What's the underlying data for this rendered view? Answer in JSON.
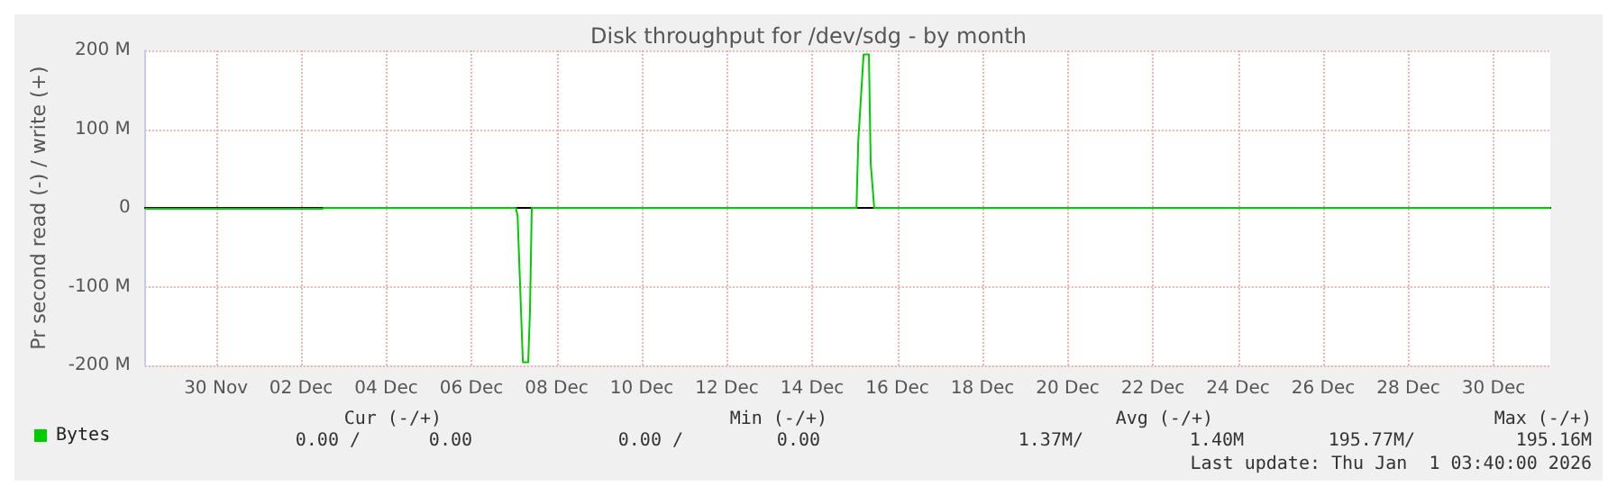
{
  "chart_data": {
    "type": "line",
    "title": "Disk throughput for /dev/sdg - by month",
    "ylabel": "Pr second read (-) / write (+)",
    "xlim": [
      "--11-28T08:00",
      "--12-31T08:00"
    ],
    "xticks": [
      {
        "value": "--11-30",
        "label": "30 Nov"
      },
      {
        "value": "--12-02",
        "label": "02 Dec"
      },
      {
        "value": "--12-04",
        "label": "04 Dec"
      },
      {
        "value": "--12-06",
        "label": "06 Dec"
      },
      {
        "value": "--12-08",
        "label": "08 Dec"
      },
      {
        "value": "--12-10",
        "label": "10 Dec"
      },
      {
        "value": "--12-12",
        "label": "12 Dec"
      },
      {
        "value": "--12-14",
        "label": "14 Dec"
      },
      {
        "value": "--12-16",
        "label": "16 Dec"
      },
      {
        "value": "--12-18",
        "label": "18 Dec"
      },
      {
        "value": "--12-20",
        "label": "20 Dec"
      },
      {
        "value": "--12-22",
        "label": "22 Dec"
      },
      {
        "value": "--12-24",
        "label": "24 Dec"
      },
      {
        "value": "--12-26",
        "label": "26 Dec"
      },
      {
        "value": "--12-28",
        "label": "28 Dec"
      },
      {
        "value": "--12-30",
        "label": "30 Dec"
      }
    ],
    "ylim": [
      -200,
      200
    ],
    "yticks": [
      {
        "value": -200,
        "label": "-200 M"
      },
      {
        "value": -100,
        "label": "-100 M"
      },
      0,
      {
        "value": 100,
        "label": "100 M"
      },
      {
        "value": 200,
        "label": "200 M"
      }
    ],
    "series": [
      {
        "name": "Bytes",
        "color": "#00cc00",
        "x": [
          "--11-28T08:00",
          "--12-02T12:00",
          "--12-02T13:00",
          "--12-07T01:00",
          "--12-07T02:00",
          "--12-07T05:00",
          "--12-07T08:00",
          "--12-07T09:00",
          "--12-07T10:00",
          "--12-15T01:00",
          "--12-15T02:00",
          "--12-15T05:00",
          "--12-15T08:00",
          "--12-15T09:00",
          "--12-15T11:00",
          "--12-31T08:00"
        ],
        "values": [
          -1,
          -1,
          0,
          0,
          -10,
          -196,
          -196,
          -130,
          0,
          0,
          85,
          195,
          195,
          57,
          0,
          0
        ]
      }
    ],
    "grid": true,
    "legend": "bottom left",
    "marker": "none",
    "annotations": [
      "Cur (-/+)",
      "Min (-/+)",
      "Avg (-/+)",
      "Max (-/+)",
      "0.00 /",
      "0.00",
      "0.00 /",
      "0.00",
      "1.37M/",
      "1.40M",
      "195.77M/",
      "195.16M",
      "Last update: Thu Jan  1 03:40:00 2026"
    ]
  }
}
